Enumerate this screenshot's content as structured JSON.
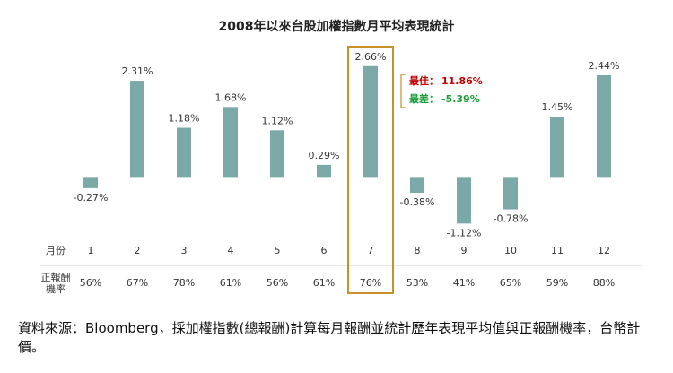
{
  "chart_data": {
    "type": "bar",
    "title": "2008年以來台股加權指數月平均表現統計",
    "category_label": "月份",
    "categories": [
      "1",
      "2",
      "3",
      "4",
      "5",
      "6",
      "7",
      "8",
      "9",
      "10",
      "11",
      "12"
    ],
    "values": [
      -0.27,
      2.31,
      1.18,
      1.68,
      1.12,
      0.29,
      2.66,
      -0.38,
      -1.12,
      -0.78,
      1.45,
      2.44
    ],
    "value_labels": [
      "-0.27%",
      "2.31%",
      "1.18%",
      "1.68%",
      "1.12%",
      "0.29%",
      "2.66%",
      "-0.38%",
      "-1.12%",
      "-0.78%",
      "1.45%",
      "2.44%"
    ],
    "color": "#7aa9a8",
    "ylim": [
      -1.5,
      3
    ],
    "highlight_category": "7",
    "highlight_color": "#c8902a",
    "annotations": [
      {
        "label": "最佳：",
        "text": "11.86%",
        "color": "#c00000"
      },
      {
        "label": "最差：",
        "text": "-5.39%",
        "color": "#1a9e3a"
      }
    ],
    "rate_row": {
      "label": "正報酬機率",
      "values": [
        56,
        67,
        78,
        61,
        56,
        61,
        76,
        53,
        41,
        65,
        59,
        88
      ],
      "value_labels": [
        "56%",
        "67%",
        "78%",
        "61%",
        "56%",
        "61%",
        "76%",
        "53%",
        "41%",
        "65%",
        "59%",
        "88%"
      ]
    }
  },
  "source": "資料來源：Bloomberg，採加權指數(總報酬)計算每月報酬並統計歷年表現平均值與正報酬機率，台幣計價。"
}
